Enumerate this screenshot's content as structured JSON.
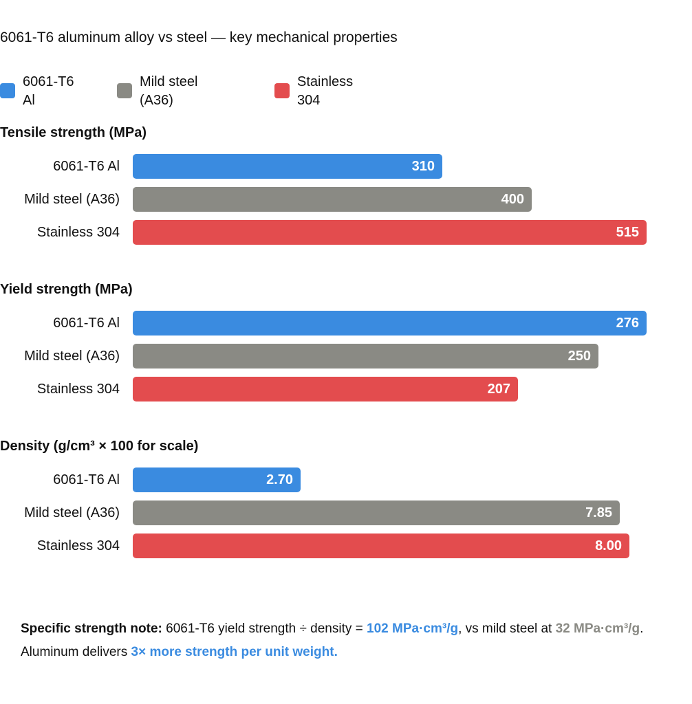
{
  "colors": {
    "aluminum": "#3a8be0",
    "mild_steel": "#8a8a84",
    "stainless": "#e34c4e"
  },
  "chart_data": {
    "type": "bar",
    "title": "6061-T6 aluminum alloy vs steel — key mechanical properties",
    "orientation": "horizontal",
    "legend": {
      "placement": "top-left",
      "entries": [
        {
          "line1": "6061-T6",
          "line2": "Al",
          "color": "#3a8be0"
        },
        {
          "line1": "Mild steel",
          "line2": "(A36)",
          "color": "#8a8a84"
        },
        {
          "line1": "Stainless",
          "line2": "304",
          "color": "#e34c4e"
        }
      ]
    },
    "panels": [
      {
        "title": "Tensile strength (MPa)",
        "bars": [
          {
            "category": "6061-T6 Al",
            "value": 310,
            "label": "310",
            "color": "#3a8be0"
          },
          {
            "category": "Mild steel (A36)",
            "value": 400,
            "label": "400",
            "color": "#8a8a84"
          },
          {
            "category": "Stainless 304",
            "value": 515,
            "label": "515",
            "color": "#e34c4e"
          }
        ]
      },
      {
        "title": "Yield strength (MPa)",
        "bars": [
          {
            "category": "6061-T6 Al",
            "value": 276,
            "label": "276",
            "color": "#3a8be0"
          },
          {
            "category": "Mild steel (A36)",
            "value": 250,
            "label": "250",
            "color": "#8a8a84"
          },
          {
            "category": "Stainless 304",
            "value": 207,
            "label": "207",
            "color": "#e34c4e"
          }
        ]
      },
      {
        "title": "Density (g/cm³ × 100 for scale)",
        "bars": [
          {
            "category": "6061-T6 Al",
            "value": 2.7,
            "label": "2.70",
            "color": "#3a8be0"
          },
          {
            "category": "Mild steel (A36)",
            "value": 7.85,
            "label": "7.85",
            "color": "#8a8a84"
          },
          {
            "category": "Stainless 304",
            "value": 8.0,
            "label": "8.00",
            "color": "#e34c4e"
          }
        ]
      }
    ]
  },
  "note": {
    "lead": "Specific strength note:",
    "text1": " 6061-T6 yield strength ÷ density = ",
    "al_value": "102 MPa·cm³/g",
    "text2": ", vs mild steel at ",
    "steel_value": "32 MPa·cm³/g",
    "text3": ". Aluminum delivers ",
    "conclusion": "3× more strength per unit weight."
  }
}
